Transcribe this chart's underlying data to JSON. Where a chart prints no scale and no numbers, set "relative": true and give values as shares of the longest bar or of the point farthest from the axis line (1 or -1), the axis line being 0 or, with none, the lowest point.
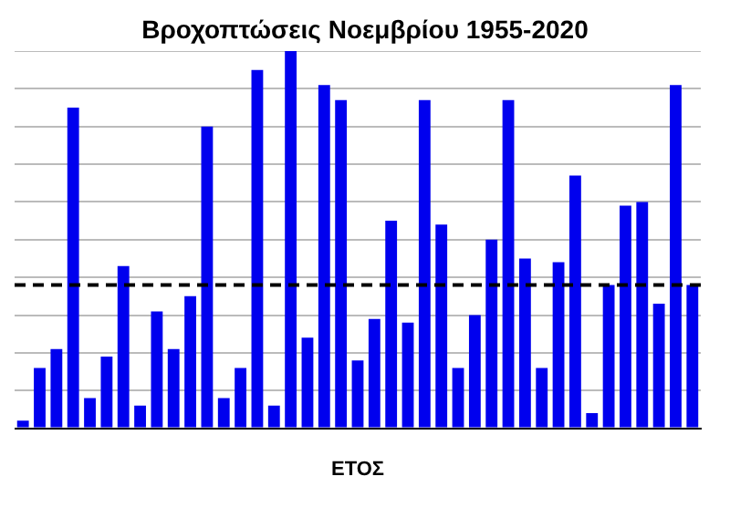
{
  "chart_data": {
    "type": "bar",
    "title": "Βροχοπτώσεις Νοεμβρίου 1955-2020",
    "xlabel": "ΕΤΟΣ",
    "relative": true,
    "grid": "y",
    "categories": [
      null,
      null,
      null,
      null,
      null,
      null,
      null,
      null,
      null,
      null,
      null,
      null,
      null,
      null,
      null,
      null,
      null,
      null,
      null,
      null,
      null,
      null,
      null,
      null,
      null,
      null,
      null,
      null,
      null,
      null,
      null,
      null,
      null,
      null,
      null,
      null,
      null,
      null,
      null,
      null,
      null
    ],
    "values": [
      0.02,
      0.16,
      0.21,
      0.85,
      0.08,
      0.19,
      0.43,
      0.06,
      0.31,
      0.21,
      0.35,
      0.8,
      0.08,
      0.16,
      0.95,
      0.06,
      1,
      0.24,
      0.91,
      0.87,
      0.18,
      0.29,
      0.55,
      0.28,
      0.87,
      0.54,
      0.16,
      0.3,
      0.5,
      0.87,
      0.45,
      0.16,
      0.44,
      0.67,
      0.04,
      0.38,
      0.59,
      0.6,
      0.33,
      0.91,
      0.38
    ],
    "color": "#0000ee",
    "ref_lines": [
      {
        "axis": "y",
        "value": 0.38,
        "color": "#000000",
        "line_style": "dashed"
      }
    ]
  }
}
